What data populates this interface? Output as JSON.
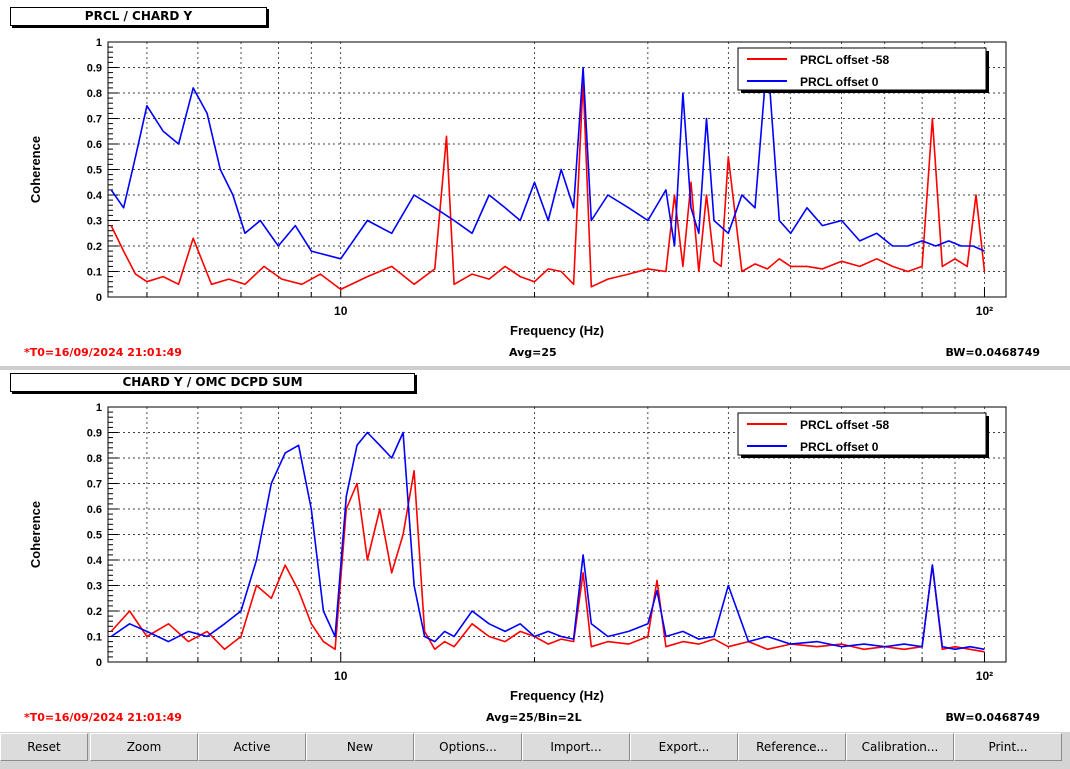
{
  "colors": {
    "series_a": "#ff0000",
    "series_b": "#0000ff",
    "frame": "#000000",
    "grid": "#000000",
    "t0_text": "#ff0000"
  },
  "panels": [
    {
      "title": "PRCL / CHARD Y",
      "t0": "*T0=16/09/2024 21:01:49",
      "avg": "Avg=25",
      "bw": "BW=0.0468749"
    },
    {
      "title": "CHARD Y / OMC DCPD SUM",
      "t0": "*T0=16/09/2024 21:01:49",
      "avg": "Avg=25/Bin=2L",
      "bw": "BW=0.0468749"
    }
  ],
  "toolbar": {
    "buttons": [
      "Reset",
      "Zoom",
      "Active",
      "New",
      "Options...",
      "Import...",
      "Export...",
      "Reference...",
      "Calibration...",
      "Print..."
    ]
  },
  "chart_data": [
    {
      "type": "line",
      "title": "PRCL / CHARD Y",
      "xlabel": "Frequency (Hz)",
      "ylabel": "Coherence",
      "xscale": "log",
      "xlim": [
        4.35,
        108
      ],
      "ylim": [
        0,
        1
      ],
      "xticks": [
        10,
        100
      ],
      "xticklabels": [
        "10",
        "10²"
      ],
      "yticks": [
        0,
        0.1,
        0.2,
        0.3,
        0.4,
        0.5,
        0.6,
        0.7,
        0.8,
        0.9,
        1
      ],
      "yticklabels": [
        "0",
        "0.1",
        "0.2",
        "0.3",
        "0.4",
        "0.5",
        "0.6",
        "0.7",
        "0.8",
        "0.9",
        "1"
      ],
      "grid": true,
      "legend_position": "top-right",
      "series": [
        {
          "name": "PRCL offset -58",
          "color": "#ff0000",
          "x": [
            4.4,
            4.6,
            4.8,
            5.0,
            5.3,
            5.6,
            5.9,
            6.3,
            6.7,
            7.1,
            7.6,
            8.1,
            8.7,
            9.3,
            10,
            11,
            12,
            13,
            14,
            14.6,
            15,
            16,
            17,
            18,
            19,
            20,
            21,
            22,
            23,
            23.8,
            24.5,
            26,
            28,
            30,
            32,
            33,
            34,
            35,
            36,
            37,
            38,
            39,
            40,
            42,
            44,
            46,
            48,
            50,
            53,
            56,
            60,
            64,
            68,
            72,
            76,
            80,
            83,
            86,
            90,
            94,
            97,
            100
          ],
          "y": [
            0.28,
            0.18,
            0.09,
            0.06,
            0.08,
            0.05,
            0.23,
            0.05,
            0.07,
            0.05,
            0.12,
            0.07,
            0.05,
            0.09,
            0.03,
            0.08,
            0.12,
            0.05,
            0.11,
            0.63,
            0.05,
            0.09,
            0.07,
            0.12,
            0.08,
            0.06,
            0.11,
            0.1,
            0.05,
            0.85,
            0.04,
            0.07,
            0.09,
            0.11,
            0.1,
            0.4,
            0.12,
            0.45,
            0.1,
            0.4,
            0.14,
            0.12,
            0.55,
            0.1,
            0.13,
            0.11,
            0.15,
            0.12,
            0.12,
            0.11,
            0.14,
            0.12,
            0.15,
            0.12,
            0.1,
            0.12,
            0.7,
            0.12,
            0.15,
            0.12,
            0.4,
            0.1
          ]
        },
        {
          "name": "PRCL offset 0",
          "color": "#0000ff",
          "x": [
            4.4,
            4.6,
            4.8,
            5.0,
            5.3,
            5.6,
            5.9,
            6.2,
            6.5,
            6.8,
            7.1,
            7.5,
            8,
            8.5,
            9,
            10,
            11,
            12,
            13,
            14,
            15,
            16,
            17,
            18,
            19,
            20,
            21,
            22,
            23,
            23.8,
            24.5,
            26,
            28,
            30,
            32,
            33,
            34,
            35,
            36,
            37,
            38,
            40,
            42,
            44,
            46,
            48,
            50,
            53,
            56,
            60,
            64,
            68,
            72,
            76,
            80,
            84,
            88,
            92,
            96,
            100
          ],
          "y": [
            0.42,
            0.35,
            0.55,
            0.75,
            0.65,
            0.6,
            0.82,
            0.72,
            0.5,
            0.4,
            0.25,
            0.3,
            0.2,
            0.28,
            0.18,
            0.15,
            0.3,
            0.25,
            0.4,
            0.35,
            0.3,
            0.25,
            0.4,
            0.35,
            0.3,
            0.45,
            0.3,
            0.5,
            0.35,
            0.9,
            0.3,
            0.4,
            0.35,
            0.3,
            0.42,
            0.2,
            0.8,
            0.35,
            0.25,
            0.7,
            0.3,
            0.25,
            0.4,
            0.35,
            0.95,
            0.3,
            0.25,
            0.35,
            0.28,
            0.3,
            0.22,
            0.25,
            0.2,
            0.2,
            0.22,
            0.2,
            0.22,
            0.2,
            0.2,
            0.18
          ]
        }
      ]
    },
    {
      "type": "line",
      "title": "CHARD Y / OMC DCPD SUM",
      "xlabel": "Frequency (Hz)",
      "ylabel": "Coherence",
      "xscale": "log",
      "xlim": [
        4.35,
        108
      ],
      "ylim": [
        0,
        1
      ],
      "xticks": [
        10,
        100
      ],
      "xticklabels": [
        "10",
        "10²"
      ],
      "yticks": [
        0,
        0.1,
        0.2,
        0.3,
        0.4,
        0.5,
        0.6,
        0.7,
        0.8,
        0.9,
        1
      ],
      "yticklabels": [
        "0",
        "0.1",
        "0.2",
        "0.3",
        "0.4",
        "0.5",
        "0.6",
        "0.7",
        "0.8",
        "0.9",
        "1"
      ],
      "grid": true,
      "legend_position": "top-right",
      "series": [
        {
          "name": "PRCL offset -58",
          "color": "#ff0000",
          "x": [
            4.4,
            4.7,
            5.0,
            5.4,
            5.8,
            6.2,
            6.6,
            7.0,
            7.4,
            7.8,
            8.2,
            8.6,
            9.0,
            9.4,
            9.8,
            10.2,
            10.6,
            11,
            11.5,
            12,
            12.5,
            13,
            13.5,
            14,
            14.5,
            15,
            16,
            17,
            18,
            19,
            20,
            21,
            22,
            23,
            23.8,
            24.5,
            26,
            28,
            30,
            31,
            32,
            34,
            36,
            38,
            40,
            43,
            46,
            50,
            55,
            60,
            65,
            70,
            75,
            80,
            83,
            86,
            90,
            95,
            100
          ],
          "y": [
            0.12,
            0.2,
            0.1,
            0.15,
            0.08,
            0.12,
            0.05,
            0.1,
            0.3,
            0.25,
            0.38,
            0.28,
            0.15,
            0.08,
            0.05,
            0.6,
            0.7,
            0.4,
            0.6,
            0.35,
            0.5,
            0.75,
            0.12,
            0.05,
            0.08,
            0.06,
            0.15,
            0.1,
            0.08,
            0.12,
            0.1,
            0.07,
            0.09,
            0.08,
            0.35,
            0.06,
            0.08,
            0.07,
            0.1,
            0.32,
            0.06,
            0.08,
            0.07,
            0.09,
            0.06,
            0.08,
            0.05,
            0.07,
            0.06,
            0.07,
            0.05,
            0.06,
            0.05,
            0.06,
            0.38,
            0.05,
            0.06,
            0.05,
            0.04
          ]
        },
        {
          "name": "PRCL offset 0",
          "color": "#0000ff",
          "x": [
            4.4,
            4.7,
            5.0,
            5.4,
            5.8,
            6.2,
            6.6,
            7.0,
            7.4,
            7.8,
            8.2,
            8.6,
            9.0,
            9.4,
            9.8,
            10.2,
            10.6,
            11,
            11.5,
            12,
            12.5,
            13,
            13.5,
            14,
            14.5,
            15,
            16,
            17,
            18,
            19,
            20,
            21,
            22,
            23,
            23.8,
            24.5,
            26,
            28,
            30,
            31,
            32,
            34,
            36,
            38,
            40,
            43,
            46,
            50,
            55,
            60,
            65,
            70,
            75,
            80,
            83,
            86,
            90,
            95,
            100
          ],
          "y": [
            0.1,
            0.15,
            0.12,
            0.08,
            0.12,
            0.1,
            0.15,
            0.2,
            0.4,
            0.7,
            0.82,
            0.85,
            0.6,
            0.2,
            0.1,
            0.65,
            0.85,
            0.9,
            0.85,
            0.8,
            0.9,
            0.3,
            0.1,
            0.08,
            0.12,
            0.1,
            0.2,
            0.15,
            0.12,
            0.15,
            0.1,
            0.12,
            0.1,
            0.09,
            0.42,
            0.15,
            0.1,
            0.12,
            0.15,
            0.28,
            0.1,
            0.12,
            0.09,
            0.1,
            0.3,
            0.08,
            0.1,
            0.07,
            0.08,
            0.06,
            0.07,
            0.06,
            0.07,
            0.06,
            0.38,
            0.06,
            0.05,
            0.06,
            0.05
          ]
        }
      ]
    }
  ]
}
